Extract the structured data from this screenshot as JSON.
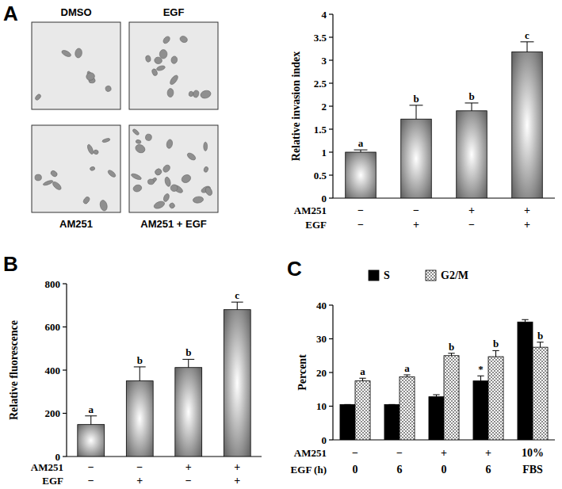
{
  "micrographs": [
    "DMSO",
    "EGF",
    "AM251",
    "AM251 + EGF"
  ],
  "chart_data": [
    {
      "type": "bar",
      "panel": "A",
      "y_label": "Relative invasion index",
      "categories": [
        null,
        null,
        null,
        null
      ],
      "values": [
        1.0,
        1.72,
        1.9,
        3.18
      ],
      "errors": [
        0.05,
        0.3,
        0.17,
        0.22
      ],
      "letters": [
        "a",
        "b",
        "b",
        "c"
      ],
      "x_table": [
        {
          "label": "AM251",
          "values": [
            "−",
            "−",
            "+",
            "+"
          ]
        },
        {
          "label": "EGF",
          "values": [
            "−",
            "+",
            "−",
            "+"
          ]
        }
      ],
      "color": "#6a6a6a",
      "ylim": [
        0,
        4
      ],
      "yticks": [
        0,
        0.5,
        1,
        1.5,
        2,
        2.5,
        3,
        3.5,
        4
      ]
    },
    {
      "type": "bar",
      "panel": "B",
      "y_label": "Relative fluorescence",
      "categories": [
        null,
        null,
        null,
        null
      ],
      "values": [
        148,
        350,
        412,
        680
      ],
      "errors": [
        40,
        65,
        38,
        35
      ],
      "letters": [
        "a",
        "b",
        "b",
        "c"
      ],
      "x_table": [
        {
          "label": "AM251",
          "values": [
            "−",
            "−",
            "+",
            "+"
          ]
        },
        {
          "label": "EGF",
          "values": [
            "−",
            "+",
            "−",
            "+"
          ]
        }
      ],
      "color": "#6a6a6a",
      "ylim": [
        0,
        800
      ],
      "yticks": [
        0,
        200,
        400,
        600,
        800
      ]
    },
    {
      "type": "bar",
      "panel": "C",
      "y_label": "Percent",
      "categories": [
        null,
        null,
        null,
        null,
        null
      ],
      "series": [
        {
          "name": "S",
          "color": "#000000",
          "values": [
            10.5,
            10.5,
            12.8,
            17.5,
            35
          ],
          "errors": [
            0,
            0,
            0.6,
            1.5,
            0.7
          ],
          "letters": [
            null,
            null,
            null,
            "*",
            null
          ]
        },
        {
          "name": "G2/M",
          "color": "#8c8c8c",
          "values": [
            17.5,
            18.7,
            25,
            24.7,
            27.5
          ],
          "errors": [
            0.8,
            0.6,
            0.7,
            1.8,
            1.5
          ],
          "letters": [
            "a",
            "a",
            "b",
            "b",
            "b"
          ]
        }
      ],
      "x_table": [
        {
          "label": "AM251",
          "values": [
            "−",
            "−",
            "+",
            "+",
            "10%"
          ]
        },
        {
          "label": "EGF (h)",
          "values": [
            "0",
            "6",
            "0",
            "6",
            "FBS"
          ]
        }
      ],
      "legend": "top",
      "ylim": [
        0,
        40
      ],
      "yticks": [
        0,
        10,
        20,
        30,
        40
      ]
    }
  ]
}
